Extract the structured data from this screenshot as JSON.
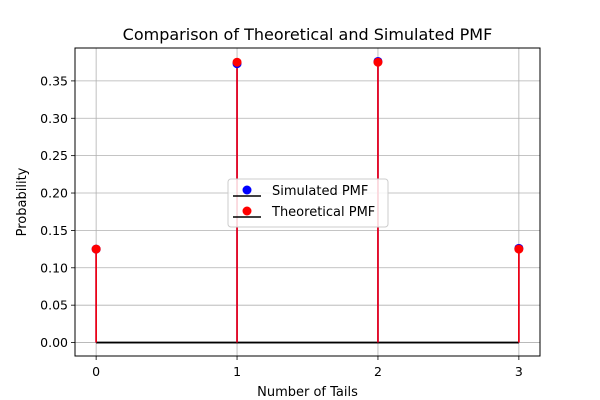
{
  "chart_data": {
    "type": "stem",
    "title": "Comparison of Theoretical and Simulated PMF",
    "xlabel": "Number of Tails",
    "ylabel": "Probability",
    "categories": [
      "0",
      "1",
      "2",
      "3"
    ],
    "x": [
      0,
      1,
      2,
      3
    ],
    "xticks": [
      "0",
      "1",
      "2",
      "3"
    ],
    "yticks": [
      "0.00",
      "0.05",
      "0.10",
      "0.15",
      "0.20",
      "0.25",
      "0.30",
      "0.35"
    ],
    "xlim": [
      -0.15,
      3.15
    ],
    "ylim": [
      -0.018,
      0.394
    ],
    "grid": true,
    "legend_position": "center",
    "series": [
      {
        "name": "Simulated PMF",
        "values": [
          0.125,
          0.373,
          0.376,
          0.126
        ],
        "marker_color": "#0000ff",
        "stem_color": "#0000ff"
      },
      {
        "name": "Theoretical PMF",
        "values": [
          0.125,
          0.375,
          0.375,
          0.125
        ],
        "marker_color": "#ff0000",
        "stem_color": "#ff0000"
      }
    ],
    "baseline_color": "#000000"
  }
}
